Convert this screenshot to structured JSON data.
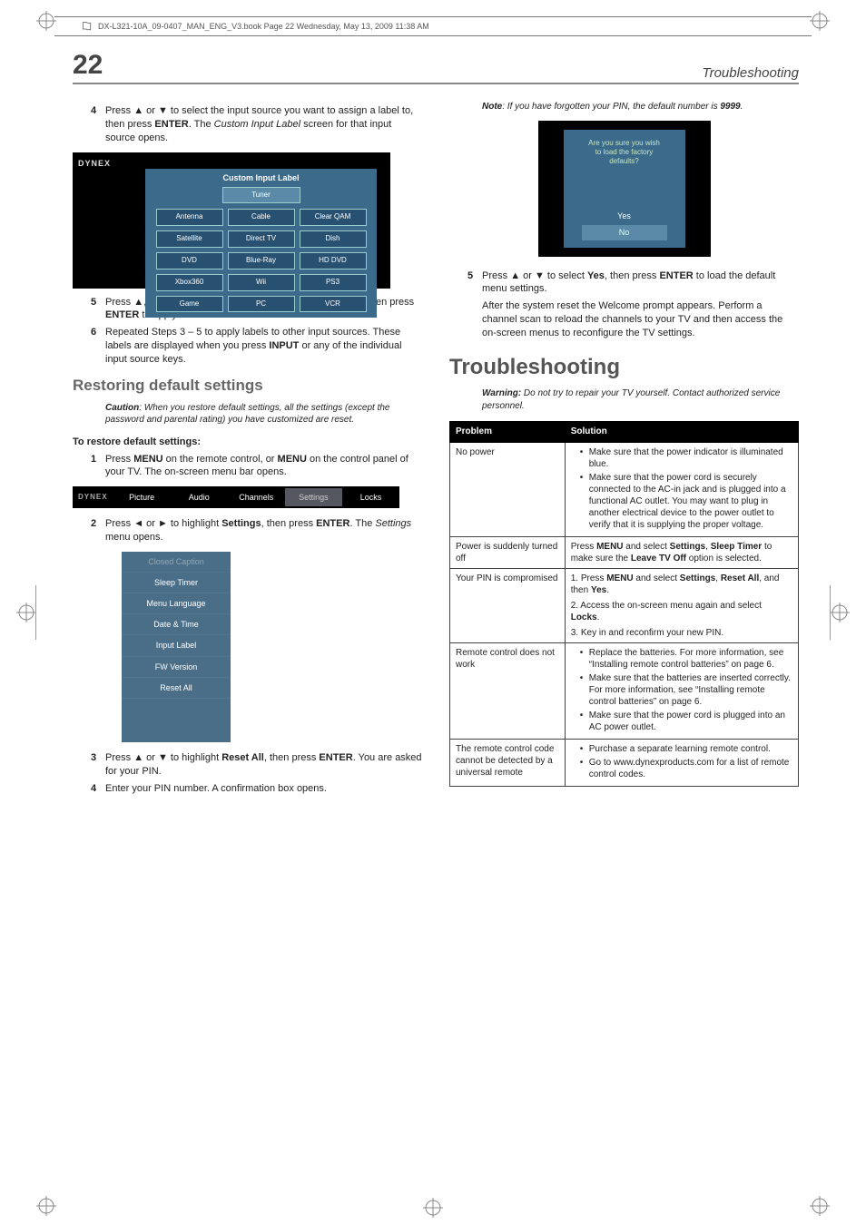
{
  "print_header": "DX-L321-10A_09-0407_MAN_ENG_V3.book  Page 22  Wednesday, May 13, 2009  11:38 AM",
  "page_number": "22",
  "running_head": "Troubleshooting",
  "left": {
    "step4": "Press ▲ or ▼ to select the input source you want to assign a label to, then press ENTER. The Custom Input Label screen for that input source opens.",
    "step5": "Press ▲, ▼, ◄, or ► to select a label for the input source, then press ENTER to apply the new label.",
    "step6": "Repeated Steps 3 – 5 to apply labels to other input sources. These labels are displayed when you press INPUT or any of the individual input source keys.",
    "restore_heading": "Restoring default settings",
    "caution_lead": "Caution",
    "caution_text": ": When you restore default settings, all the settings (except the password and parental rating) you have customized are reset.",
    "to_restore": "To restore default settings:",
    "r_step1": "Press MENU on the remote control, or MENU on the control panel of your TV. The on-screen menu bar opens.",
    "r_step2": "Press ◄ or ► to highlight Settings, then press ENTER. The Settings menu opens.",
    "r_step3": "Press ▲ or ▼ to highlight Reset All, then press ENTER. You are asked for your PIN.",
    "r_step4": "Enter your PIN number. A confirmation box opens.",
    "shot1": {
      "logo": "DYNEX",
      "title": "Custom Input Label",
      "tuner": "Tuner",
      "grid": [
        "Antenna",
        "Cable",
        "Clear QAM",
        "Satellite",
        "Direct TV",
        "Dish",
        "DVD",
        "Blue-Ray",
        "HD DVD",
        "Xbox360",
        "Wii",
        "PS3",
        "Game",
        "PC",
        "VCR"
      ]
    },
    "menubar": {
      "logo": "DYNEX",
      "tabs": [
        "Picture",
        "Audio",
        "Channels",
        "Settings",
        "Locks"
      ]
    },
    "settings_menu": {
      "items": [
        "Closed Caption",
        "Sleep Timer",
        "Menu Language",
        "Date & Time",
        "Input Label",
        "FW Version",
        "Reset All"
      ]
    }
  },
  "right": {
    "note_lead": "Note",
    "note_text": ": If you have forgotten your PIN, the default number is 9999.",
    "confirm": {
      "q1": "Are you sure you wish",
      "q2": "to load the factory",
      "q3": "defaults?",
      "yes": "Yes",
      "no": "No"
    },
    "step5": "Press ▲ or ▼ to select Yes, then press ENTER to load the default menu settings.",
    "step5_cont": "After the system reset the Welcome prompt appears. Perform a channel scan to reload the channels to your TV and then access the on-screen menus to reconfigure the TV settings.",
    "trouble_heading": "Troubleshooting",
    "warn_lead": "Warning:",
    "warn_text": " Do not try to repair your TV yourself. Contact authorized service personnel.",
    "table": {
      "head": [
        "Problem",
        "Solution"
      ],
      "rows": [
        {
          "p": "No power",
          "s_bul": [
            "Make sure that the power indicator is illuminated blue.",
            "Make sure that the power cord is securely connected to the AC-in jack and is plugged into a functional AC outlet. You may want to plug in another electrical device to the power outlet to verify that it is supplying the proper voltage."
          ]
        },
        {
          "p": "Power is suddenly turned off",
          "s_html": "Press <b>MENU</b> and select <b>Settings</b>, <b>Sleep Timer</b> to make sure the <b>Leave TV Off</b> option is selected."
        },
        {
          "p": "Your PIN is compromised",
          "s_lines": [
            "1. Press <b>MENU</b> and select <b>Settings</b>, <b>Reset All</b>, and then <b>Yes</b>.",
            "2. Access the on-screen menu again and select <b>Locks</b>.",
            "3. Key in and reconfirm your new PIN."
          ]
        },
        {
          "p": "Remote control does not work",
          "s_bul": [
            "Replace the batteries. For more information, see “Installing remote control batteries” on page  6.",
            "Make sure that the batteries are inserted correctly. For more information, see “Installing remote control batteries” on page  6.",
            "Make sure that the power cord is plugged into an AC power outlet."
          ]
        },
        {
          "p": "The remote control code cannot be detected by a universal remote",
          "s_bul": [
            "Purchase a separate learning remote control.",
            "Go to www.dynexproducts.com for a list of remote control codes."
          ]
        }
      ]
    }
  },
  "colors": {
    "panel_bg": "#3c6a8a",
    "panel_btn": "#5a8aa8",
    "panel_cell": "#285070",
    "heading_gray": "#666666",
    "rule_gray": "#888888"
  }
}
